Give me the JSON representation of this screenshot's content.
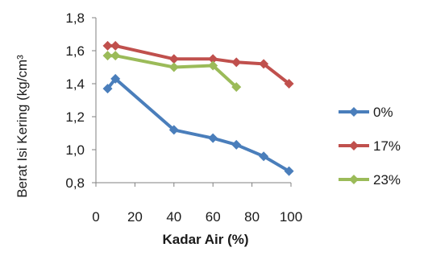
{
  "chart_data": {
    "type": "line",
    "title": "",
    "xlabel": "Kadar Air (%)",
    "ylabel": "Berat Isi Kering (kg/cm³",
    "xlim": [
      0,
      100
    ],
    "ylim": [
      0.8,
      1.8
    ],
    "x_ticks": [
      "0",
      "20",
      "40",
      "60",
      "80",
      "100"
    ],
    "y_ticks": [
      "0,8",
      "1,0",
      "1,2",
      "1,4",
      "1,6",
      "1,8"
    ],
    "grid": false,
    "legend_position": "right",
    "series": [
      {
        "name": "0%",
        "color": "#4a7ebb",
        "marker": "diamond",
        "x": [
          6,
          10,
          40,
          60,
          72,
          86,
          99
        ],
        "y": [
          1.37,
          1.43,
          1.12,
          1.07,
          1.03,
          0.96,
          0.87
        ]
      },
      {
        "name": "17%",
        "color": "#c0504d",
        "marker": "diamond",
        "x": [
          6,
          10,
          40,
          60,
          72,
          86,
          99
        ],
        "y": [
          1.63,
          1.63,
          1.55,
          1.55,
          1.53,
          1.52,
          1.4
        ]
      },
      {
        "name": "23%",
        "color": "#9bbb59",
        "marker": "diamond",
        "x": [
          6,
          10,
          40,
          60,
          72
        ],
        "y": [
          1.57,
          1.57,
          1.5,
          1.51,
          1.38
        ]
      }
    ]
  }
}
